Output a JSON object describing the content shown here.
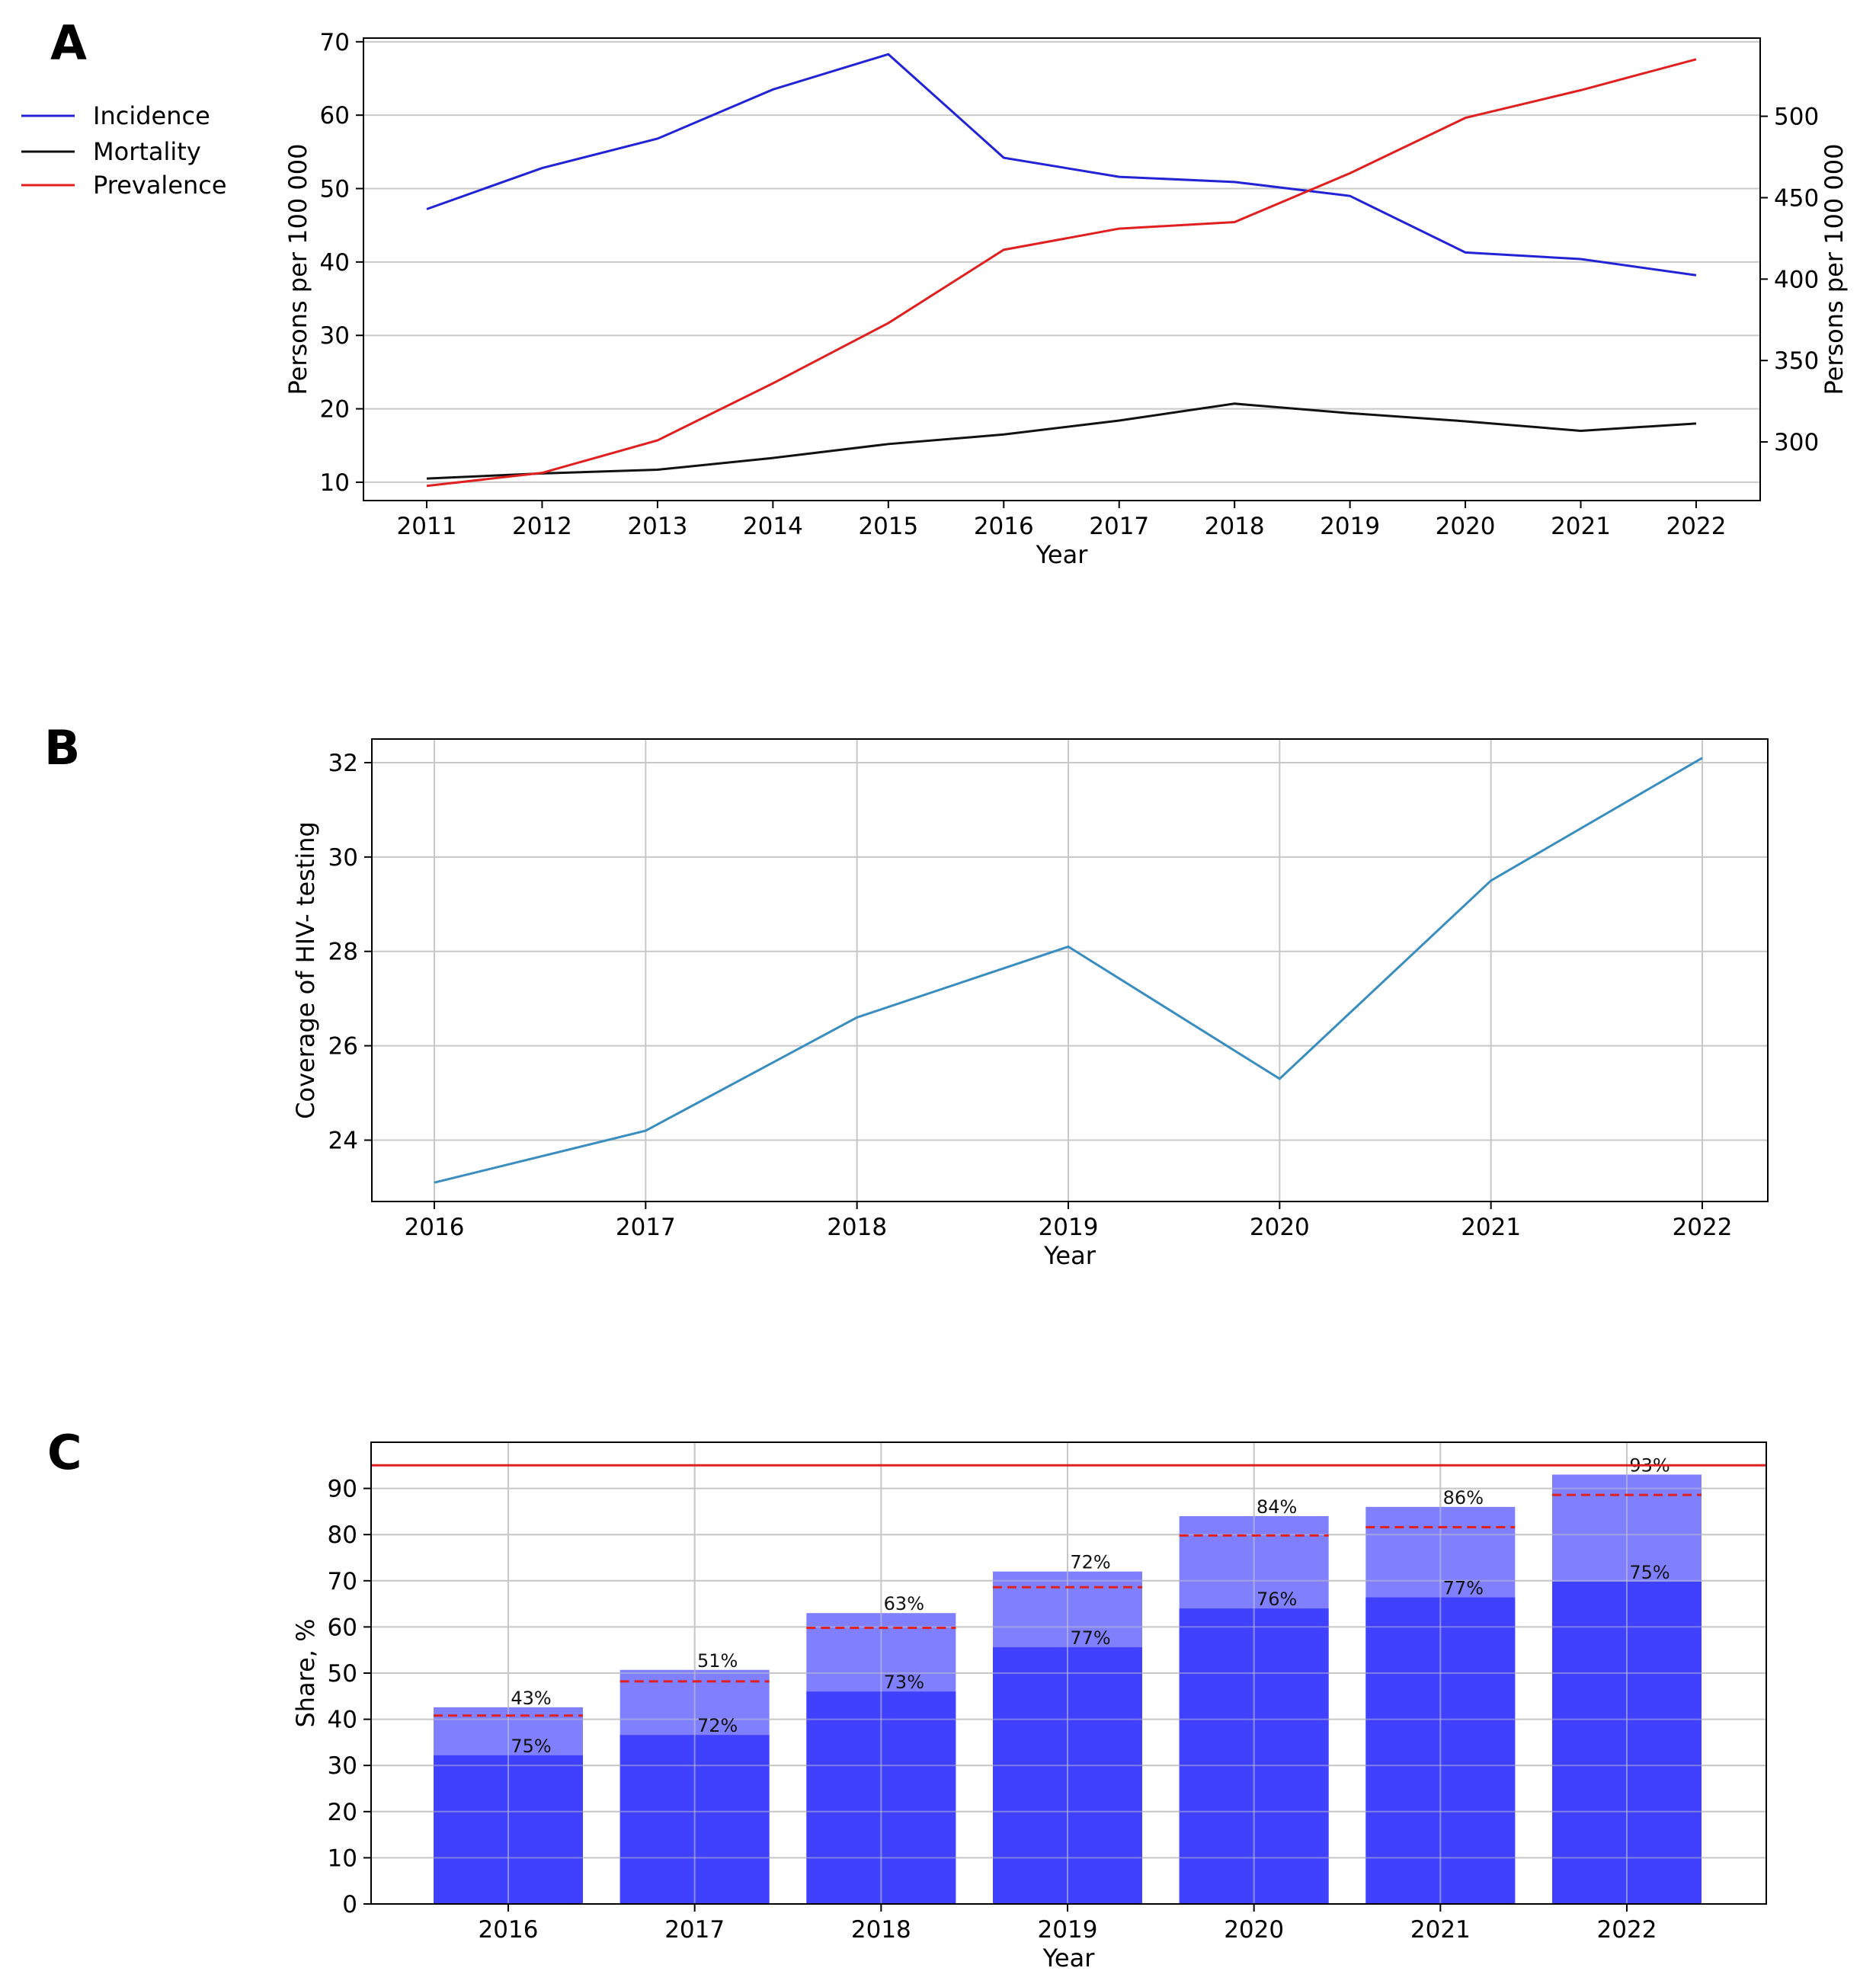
{
  "panel_labels": [
    "A",
    "B",
    "C"
  ],
  "colors": {
    "incidence": "#2323d6",
    "mortality": "#111111",
    "prevalence": "#e02020",
    "coverage_line": "#3a8dbf",
    "bar_dark": "#4040ff",
    "bar_light": "#8080ff",
    "target_line": "#e02020",
    "grid": "#c8c8c8"
  },
  "chart_data": [
    {
      "type": "line",
      "panel": "A",
      "x": [
        2011,
        2012,
        2013,
        2014,
        2015,
        2016,
        2017,
        2018,
        2019,
        2020,
        2021,
        2022
      ],
      "xlabel": "Year",
      "ylabel": "Persons per 100 000",
      "ylabel_right": "Persons per 100 000",
      "ylim": [
        7.5,
        70.5
      ],
      "ylim_right": [
        264,
        548
      ],
      "yticks": [
        10,
        20,
        30,
        40,
        50,
        60,
        70
      ],
      "yticks_right": [
        300,
        350,
        400,
        450,
        500
      ],
      "legend": "outside-left",
      "grid": "horizontal",
      "series": [
        {
          "name": "Incidence",
          "axis": "left",
          "values": [
            47.2,
            52.8,
            56.8,
            63.5,
            68.3,
            54.2,
            51.6,
            50.9,
            49.0,
            41.3,
            40.4,
            38.2
          ]
        },
        {
          "name": "Mortality",
          "axis": "left",
          "values": [
            10.5,
            11.2,
            11.7,
            13.3,
            15.2,
            16.5,
            18.4,
            20.7,
            19.4,
            18.3,
            17.0,
            18.0
          ]
        },
        {
          "name": "Prevalence",
          "axis": "right",
          "values": [
            273,
            281,
            301,
            336,
            373,
            418,
            431,
            435,
            465,
            499,
            516,
            535
          ]
        }
      ]
    },
    {
      "type": "line",
      "panel": "B",
      "x": [
        2016,
        2017,
        2018,
        2019,
        2020,
        2021,
        2022
      ],
      "xlabel": "Year",
      "ylabel": "Coverage of HIV- testing",
      "ylim": [
        22.7,
        32.5
      ],
      "yticks": [
        24,
        26,
        28,
        30,
        32
      ],
      "grid": true,
      "series": [
        {
          "values": [
            23.1,
            24.2,
            26.6,
            28.1,
            25.3,
            29.5,
            32.1
          ]
        }
      ]
    },
    {
      "type": "bar",
      "panel": "C",
      "categories": [
        "2016",
        "2017",
        "2018",
        "2019",
        "2020",
        "2021",
        "2022"
      ],
      "xlabel": "Year",
      "ylabel": "Share, %",
      "ylim": [
        0,
        100
      ],
      "yticks": [
        0,
        10,
        20,
        30,
        40,
        50,
        60,
        70,
        80,
        90
      ],
      "grid": true,
      "reference_line": 95,
      "series": [
        {
          "values": [
            32.2,
            36.6,
            46.0,
            55.6,
            64.0,
            66.4,
            69.8
          ],
          "labels": [
            "75%",
            "72%",
            "73%",
            "77%",
            "76%",
            "77%",
            "75%"
          ]
        },
        {
          "values": [
            42.6,
            50.7,
            63.0,
            72.0,
            84.0,
            86.0,
            93.0
          ],
          "labels": [
            "43%",
            "51%",
            "63%",
            "72%",
            "84%",
            "86%",
            "93%"
          ]
        }
      ],
      "dashed_markers": [
        40.8,
        48.2,
        59.8,
        68.6,
        79.8,
        81.6,
        88.6
      ]
    }
  ]
}
